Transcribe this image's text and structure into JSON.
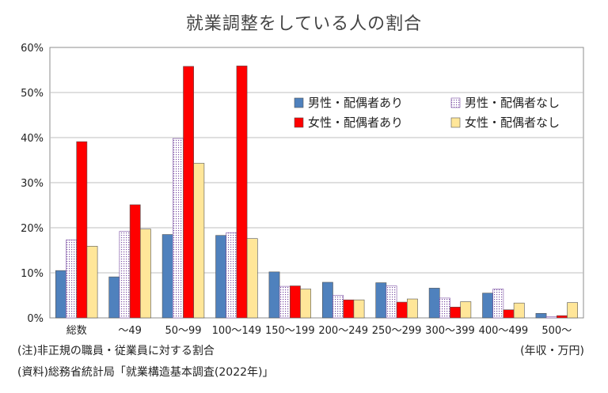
{
  "chart_data": {
    "type": "bar",
    "title": "就業調整をしている人の割合",
    "categories": [
      "総数",
      "～49",
      "50～99",
      "100～149",
      "150～199",
      "200～249",
      "250～299",
      "300～399",
      "400～499",
      "500～"
    ],
    "y_ticks": [
      "0%",
      "10%",
      "20%",
      "30%",
      "40%",
      "50%",
      "60%"
    ],
    "ylim": [
      0,
      60
    ],
    "y_unit": "%",
    "grid": true,
    "legend_position": "top-right",
    "series": [
      {
        "name": "男性・配偶者あり",
        "color": "#4f81bd",
        "pattern": "solid",
        "values": [
          10.5,
          9.1,
          18.5,
          18.3,
          10.2,
          7.9,
          7.8,
          6.6,
          5.5,
          1.0
        ]
      },
      {
        "name": "男性・配偶者なし",
        "color": "#ffffff",
        "pattern": "dotted-purple",
        "values": [
          17.3,
          19.2,
          39.8,
          18.9,
          7.0,
          5.0,
          7.1,
          4.4,
          6.4,
          0.3
        ]
      },
      {
        "name": "女性・配偶者あり",
        "color": "#ff0000",
        "pattern": "solid",
        "values": [
          39.1,
          25.1,
          55.8,
          55.9,
          7.1,
          4.0,
          3.5,
          2.4,
          1.8,
          0.5
        ]
      },
      {
        "name": "女性・配偶者なし",
        "color": "#ffe699",
        "pattern": "solid",
        "values": [
          15.9,
          19.7,
          34.3,
          17.6,
          6.4,
          4.0,
          4.2,
          3.6,
          3.3,
          3.4
        ]
      }
    ]
  },
  "footnotes": {
    "note": "(注)非正規の職員・従業員に対する割合",
    "source": "(資料)総務省統計局「就業構造基本調査(2022年)」",
    "unit": "(年収・万円)"
  }
}
